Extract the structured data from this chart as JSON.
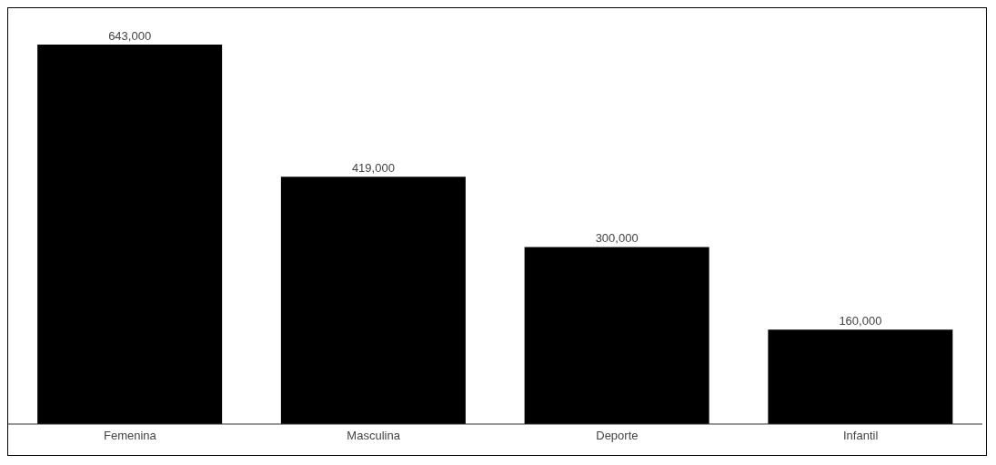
{
  "chart_data": {
    "type": "bar",
    "categories": [
      "Femenina",
      "Masculina",
      "Deporte",
      "Infantil"
    ],
    "values": [
      643000,
      419000,
      300000,
      160000
    ],
    "color": "#000000",
    "value_labels": [
      "643,000",
      "419,000",
      "300,000",
      "160,000"
    ]
  }
}
